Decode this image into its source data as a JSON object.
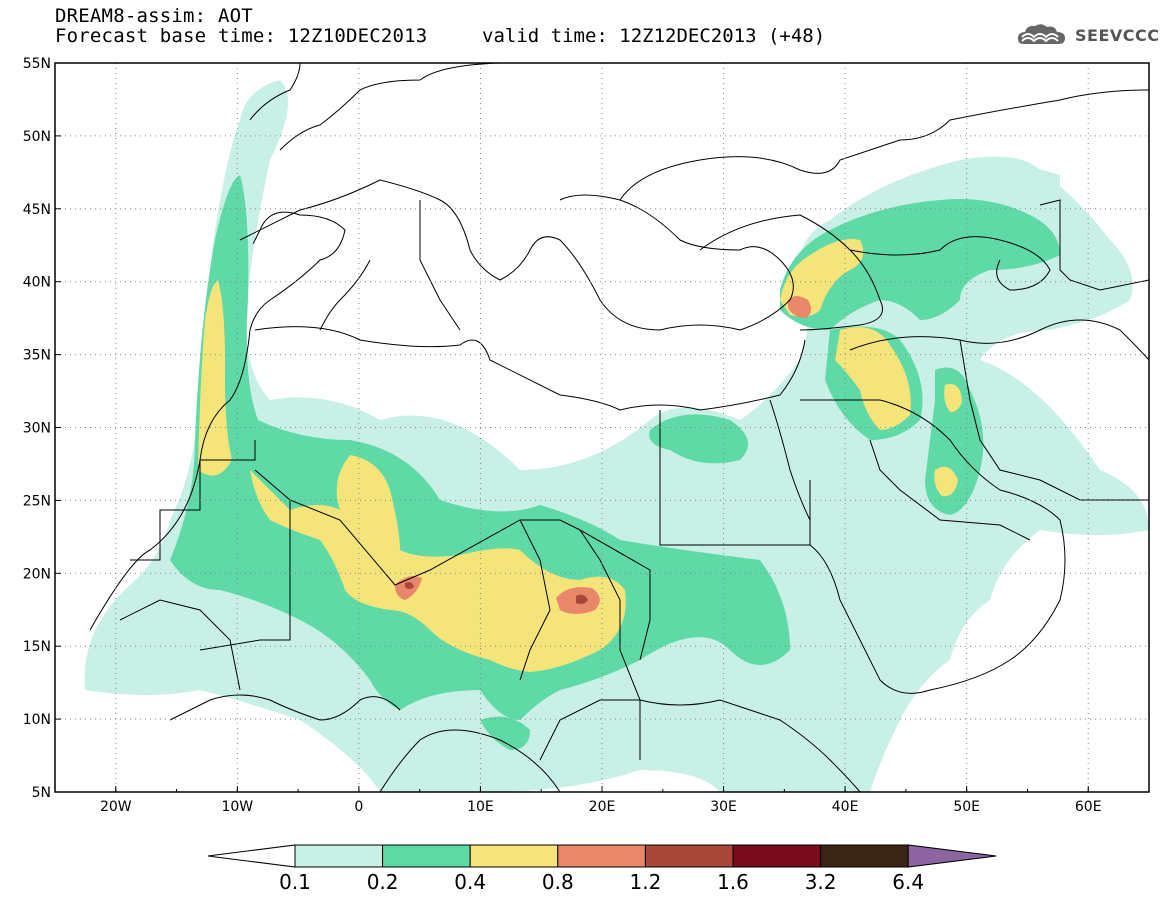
{
  "header": {
    "title": "DREAM8-assim: AOT",
    "base_time": "Forecast base time: 12Z10DEC2013",
    "valid_time": "valid time: 12Z12DEC2013 (+48)",
    "logo_text": "SEEVCCC"
  },
  "map": {
    "variable": "AOT",
    "lat_labels": [
      "55N",
      "50N",
      "45N",
      "40N",
      "35N",
      "30N",
      "25N",
      "20N",
      "15N",
      "10N",
      "5N"
    ],
    "lon_labels": [
      "20W",
      "10W",
      "0",
      "10E",
      "20E",
      "30E",
      "40E",
      "50E",
      "60E"
    ],
    "lat_range": [
      5,
      55
    ],
    "lon_range": [
      -25,
      65
    ],
    "grid": "dotted"
  },
  "colorbar": {
    "labels": [
      "0.1",
      "0.2",
      "0.4",
      "0.8",
      "1.2",
      "1.6",
      "3.2",
      "6.4"
    ],
    "colors": [
      "#c8f0e6",
      "#5fd9a6",
      "#f5e47a",
      "#e8876a",
      "#a8463a",
      "#7a0a1e",
      "#3a2414",
      "#8c64a0"
    ],
    "under_color": "#ffffff"
  }
}
